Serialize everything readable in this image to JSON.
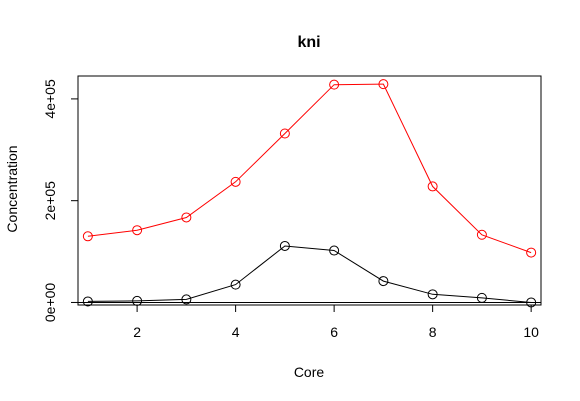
{
  "chart_data": {
    "type": "line",
    "title": "kni",
    "xlabel": "Core",
    "ylabel": "Concentration",
    "xlim": [
      0.8,
      10.2
    ],
    "ylim": [
      -5000,
      445000
    ],
    "x": [
      1,
      2,
      3,
      4,
      5,
      6,
      7,
      8,
      9,
      10
    ],
    "x_ticks": [
      2,
      4,
      6,
      8,
      10
    ],
    "x_tick_labels": [
      "2",
      "4",
      "6",
      "8",
      "10"
    ],
    "y_ticks": [
      0,
      200000,
      400000
    ],
    "y_tick_labels": [
      "0e+00",
      "2e+05",
      "4e+05"
    ],
    "reference_line_y": 0,
    "series": [
      {
        "color": "#ff0000",
        "values": [
          130000,
          142000,
          167000,
          237000,
          332000,
          428000,
          429000,
          228000,
          133000,
          98000
        ]
      },
      {
        "color": "#000000",
        "values": [
          2000,
          3000,
          6000,
          35000,
          111000,
          102000,
          42000,
          16000,
          9000,
          0
        ]
      }
    ],
    "marker": "circle-open",
    "grid": false,
    "legend": "none"
  }
}
